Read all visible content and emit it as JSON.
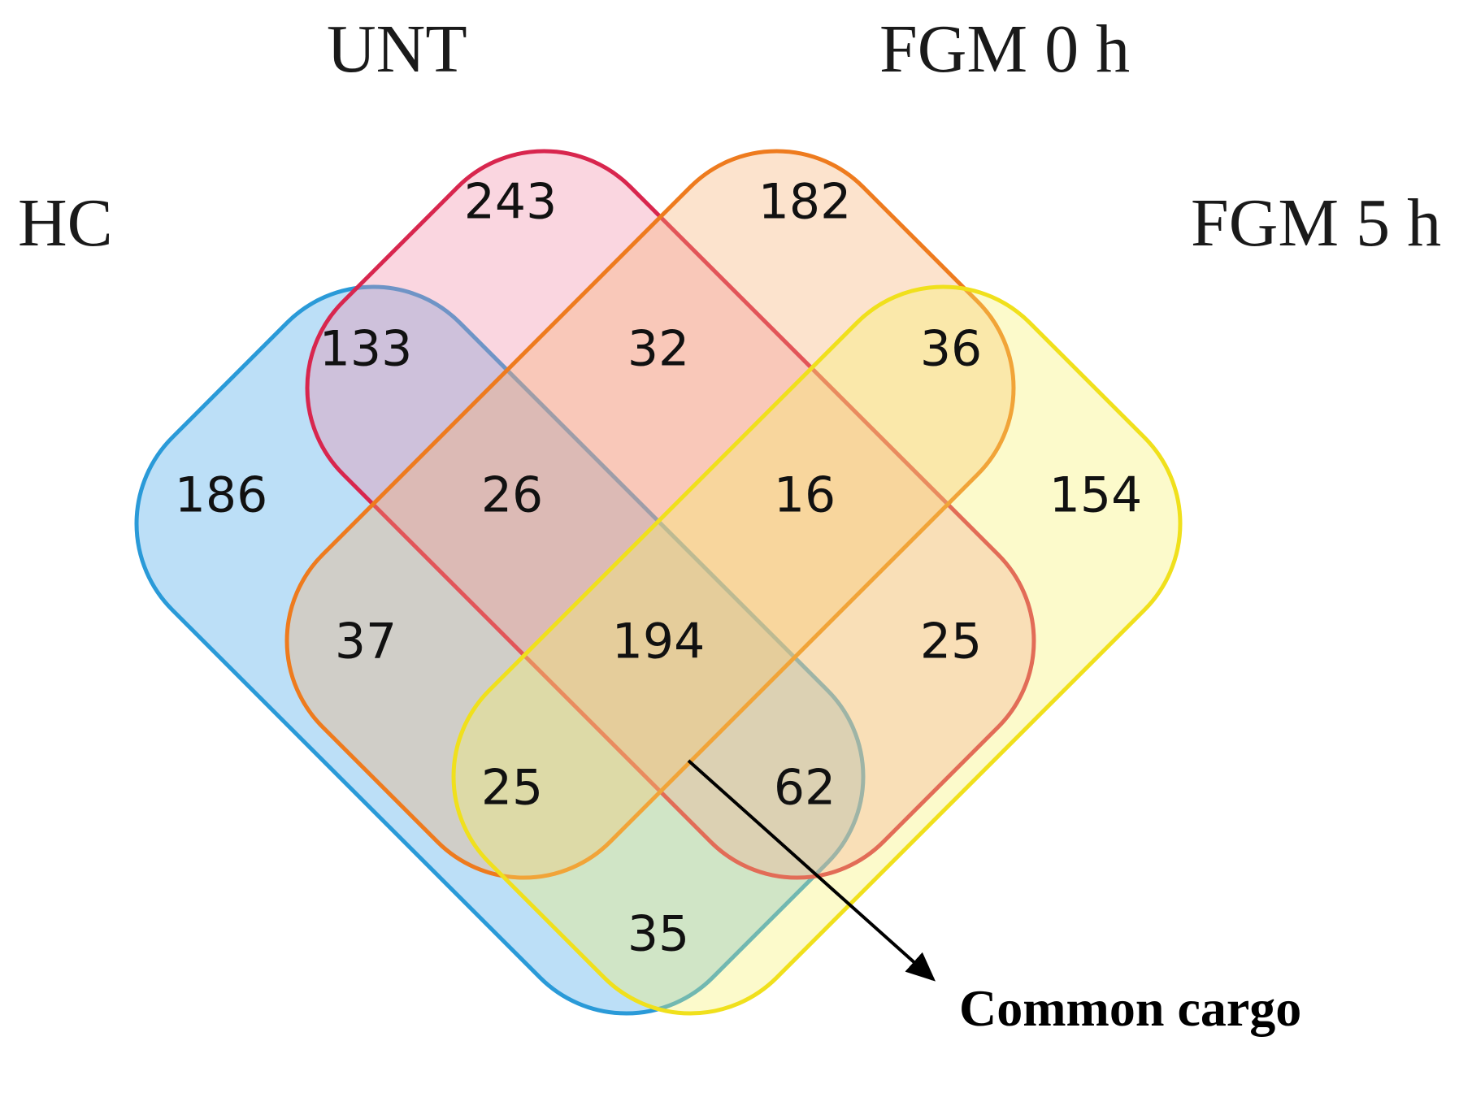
{
  "sets": [
    {
      "key": "hc",
      "label": "HC",
      "fill": "#3fa3e8",
      "stroke": "#2a9ad8"
    },
    {
      "key": "unt",
      "label": "UNT",
      "fill": "#f08aa6",
      "stroke": "#d8264e"
    },
    {
      "key": "fgm0",
      "label": "FGM 0 h",
      "fill": "#f6b070",
      "stroke": "#ee7b1e"
    },
    {
      "key": "fgm5",
      "label": "FGM 5 h",
      "fill": "#f7f06a",
      "stroke": "#f0e01c"
    }
  ],
  "regions": [
    {
      "id": "hc-only",
      "value": "186"
    },
    {
      "id": "unt-only",
      "value": "243"
    },
    {
      "id": "fgm0-only",
      "value": "182"
    },
    {
      "id": "fgm5-only",
      "value": "154"
    },
    {
      "id": "hc-unt",
      "value": "133"
    },
    {
      "id": "unt-fgm0",
      "value": "32"
    },
    {
      "id": "fgm0-fgm5",
      "value": "36"
    },
    {
      "id": "hc-unt-fgm0",
      "value": "26"
    },
    {
      "id": "unt-fgm0-fgm5",
      "value": "16"
    },
    {
      "id": "hc-fgm0",
      "value": "37"
    },
    {
      "id": "all-four",
      "value": "194"
    },
    {
      "id": "unt-fgm5",
      "value": "25"
    },
    {
      "id": "hc-fgm0-fgm5",
      "value": "25"
    },
    {
      "id": "hc-unt-fgm5",
      "value": "62"
    },
    {
      "id": "hc-fgm5",
      "value": "35"
    }
  ],
  "callout": {
    "label": "Common cargo",
    "points_to": "all-four"
  }
}
